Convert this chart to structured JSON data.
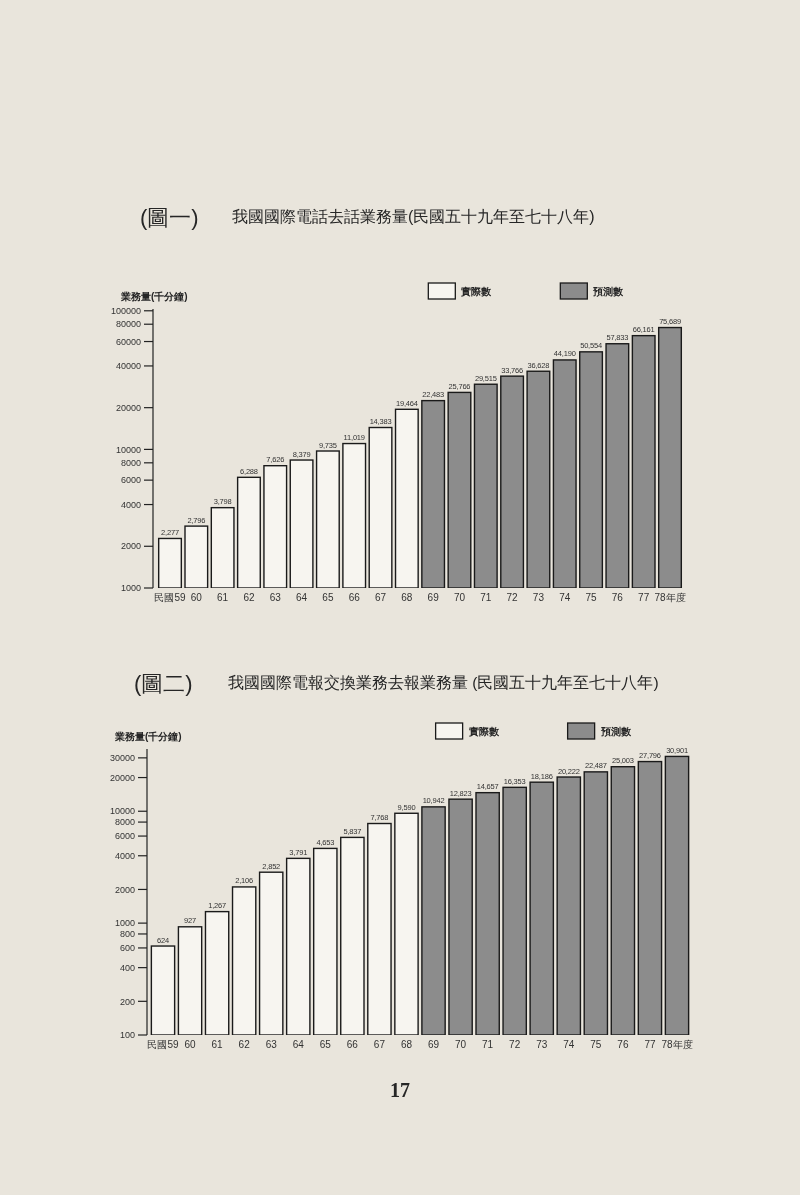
{
  "chart_data": [
    {
      "type": "bar",
      "title": "我國國際電話去話業務量(民國五十九年至七十八年)",
      "annotations": [
        "(圖一)"
      ],
      "ylabel": "業務量(千分鐘)",
      "categories": [
        "民國59",
        "60",
        "61",
        "62",
        "63",
        "64",
        "65",
        "66",
        "67",
        "68",
        "69",
        "70",
        "71",
        "72",
        "73",
        "74",
        "75",
        "76",
        "77",
        "78年度"
      ],
      "series": [
        {
          "name": "實際數",
          "color": "#f7f5f0",
          "values": [
            2277,
            2796,
            3798,
            6288,
            7626,
            8379,
            9735,
            11019,
            14383,
            19464,
            null,
            null,
            null,
            null,
            null,
            null,
            null,
            null,
            null,
            null
          ],
          "value_labels": [
            "2,277",
            "2,796",
            "3,798",
            "6,288",
            "7,626",
            "8,379",
            "9,735",
            "11,019",
            "14,383",
            "19,464",
            null,
            null,
            null,
            null,
            null,
            null,
            null,
            null,
            null,
            null
          ]
        },
        {
          "name": "預測數",
          "color": "#8c8c8c",
          "values": [
            null,
            null,
            null,
            null,
            null,
            null,
            null,
            null,
            null,
            null,
            22483,
            25766,
            29515,
            33766,
            36628,
            44190,
            50554,
            57833,
            66161,
            75689
          ],
          "value_labels": [
            null,
            null,
            null,
            null,
            null,
            null,
            null,
            null,
            null,
            null,
            "22,483",
            "25,766",
            "29,515",
            "33,766",
            "36,628",
            "44,190",
            "50,554",
            "57,833",
            "66,161",
            "75,689"
          ]
        }
      ],
      "log": "y",
      "ylim": [
        1000,
        103000
      ],
      "yticks": [
        1000,
        2000,
        4000,
        6000,
        8000,
        10000,
        20000,
        40000,
        60000,
        80000,
        100000
      ],
      "legend": "top right"
    },
    {
      "type": "bar",
      "title": "我國國際電報交換業務去報業務量 (民國五十九年至七十八年)",
      "annotations": [
        "(圖二)",
        "17"
      ],
      "ylabel": "業務量(千分鐘)",
      "categories": [
        "民國59",
        "60",
        "61",
        "62",
        "63",
        "64",
        "65",
        "66",
        "67",
        "68",
        "69",
        "70",
        "71",
        "72",
        "73",
        "74",
        "75",
        "76",
        "77",
        "78年度"
      ],
      "series": [
        {
          "name": "實際數",
          "color": "#f7f5f0",
          "values": [
            624,
            927,
            1267,
            2106,
            2852,
            3791,
            4653,
            5837,
            7768,
            9590,
            null,
            null,
            null,
            null,
            null,
            null,
            null,
            null,
            null,
            null
          ],
          "value_labels": [
            "624",
            "927",
            "1,267",
            "2,106",
            "2,852",
            "3,791",
            "4,653",
            "5,837",
            "7,768",
            "9,590",
            null,
            null,
            null,
            null,
            null,
            null,
            null,
            null,
            null,
            null
          ]
        },
        {
          "name": "預測數",
          "color": "#8c8c8c",
          "values": [
            null,
            null,
            null,
            null,
            null,
            null,
            null,
            null,
            null,
            null,
            10942,
            12823,
            14657,
            16353,
            18186,
            20222,
            22487,
            25003,
            27796,
            30901
          ],
          "value_labels": [
            null,
            null,
            null,
            null,
            null,
            null,
            null,
            null,
            null,
            null,
            "10,942",
            "12,823",
            "14,657",
            "16,353",
            "18,186",
            "20,222",
            "22,487",
            "25,003",
            "27,796",
            "30,901"
          ]
        }
      ],
      "log": "y",
      "ylim": [
        100,
        36000
      ],
      "yticks": [
        100,
        200,
        400,
        600,
        800,
        1000,
        2000,
        4000,
        6000,
        8000,
        10000,
        20000,
        30000
      ],
      "legend": "top right"
    }
  ]
}
